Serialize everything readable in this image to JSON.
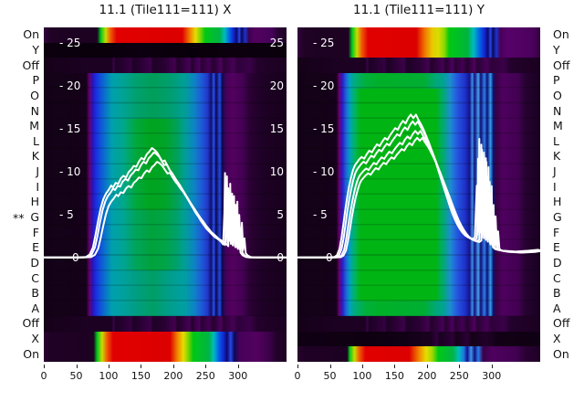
{
  "figure": {
    "background": "#ffffff",
    "curve_color": "#ffffff",
    "text_color": "#111111"
  },
  "row_labels": [
    "On",
    "Y",
    "Off",
    "P",
    "O",
    "N",
    "M",
    "L",
    "K",
    "J",
    "I",
    "H",
    "G",
    "F",
    "E",
    "D",
    "C",
    "B",
    "A",
    "Off",
    "X",
    "On"
  ],
  "star": {
    "text": "**",
    "row_index": 12
  },
  "y_ticks": [
    {
      "v": 25,
      "left": "- 25",
      "right": "25"
    },
    {
      "v": 20,
      "left": "- 20",
      "right": "20"
    },
    {
      "v": 15,
      "left": "- 15",
      "right": "15"
    },
    {
      "v": 10,
      "left": "- 10",
      "right": "10"
    },
    {
      "v": 5,
      "left": "- 5",
      "right": "5"
    },
    {
      "v": 0,
      "left": "0",
      "right": "0"
    }
  ],
  "gradients": {
    "g_rainbow_x_top": "#31033b 0%,#1f0224 3%,#1d0222 22%,#00c81e 23.5%,#c8dc00 25.5%,#f05a00 27.5%,#e10000 30%,#dc0000 57%,#f07800 60%,#e8dc00 62.5%,#7ed400 64.5%,#00c814 66.5%,#00b446 72.5%,#00bcbc 74.5%,#0064e6 76.5%,#1428d2 78%,#0a0a6e 79.5%,#2a46e6 80.5%,#0a0a5a 81.5%,#1e32c8 83%,#3c0150 84.5%,#53015f 87%,#46015a 94%,#2a0133 96.5%,#1d0124 100%",
    "g_rainbow_x_bot": "#2a022e 0%,#1e0124 3%,#1d0122 20.5%,#00c81e 22%,#c8dc00 24%,#f05a00 26%,#e10000 28.5%,#dc0000 52%,#f08200 55%,#e8dc00 57.5%,#7ed400 59.5%,#00c814 61.5%,#00b446 68%,#00bcbc 70%,#0064e6 72%,#1428d2 74%,#0a0a6e 75.5%,#2a46e6 77%,#0a0a5a 78.5%,#46015a 80.5%,#53015f 88%,#3a0148 93%,#23012b 96%,#1c0122 100%",
    "g_rainbow_y_top": "#31033b 0%,#1f0224 3%,#1d0222 21%,#00c81e 22.5%,#c8dc00 24.5%,#f05a00 26.5%,#e10000 29%,#dc0000 49%,#f07800 52.5%,#e8c800 55.5%,#d8dc00 58%,#8cd800 60.5%,#00c814 62.5%,#00b43c 70%,#00bcbc 72.5%,#0064e6 75%,#1428d2 77%,#0a0a6e 78.5%,#2a46e6 79.5%,#0a0a5a 80.5%,#1e32c8 82%,#46015a 83.5%,#58016a 86.5%,#4a015c 97%,#33013f 100%",
    "g_rainbow_y_bot": "#2a022e 0%,#1e0124 3%,#1d0122 20.5%,#00c81e 21.5%,#c8dc00 23.5%,#f05a00 25.5%,#e10000 28%,#dc0000 46%,#f08200 50%,#e8dc00 53%,#a0d800 55.5%,#00c814 58%,#00b446 64%,#00bcbc 66.5%,#1e78e0 68.5%,#12128c 70%,#3c96ec 71.5%,#12127e 73%,#2a7de8 74.5%,#3a0148 76.5%,#4e015e 80%,#420152 90%,#2a0134 94%,#1d0124 100%",
    "g_dark_row": "#0c000f 0%,#09000b 25%,#0d0011 40%,#080009 60%,#0c000e 78%,#0a000c 100%",
    "g_off_row": "#150118 0%,#1c0123 18%,#1c0123 28%,#3c014a 28.8%,#1c0123 29.6%,#330140 36%,#1c0123 37%,#3c014a 44%,#1e0126 45%,#2a0134 50%,#42014f 54%,#220129 55%,#440154 60%,#260130 61%,#4c015e 64%,#2a0134 65%,#420152 68%,#260130 70%,#4e015e 73%,#2a0134 74%,#460155 78%,#2e0139 80%,#3a0148 85%,#23012b 88%,#1a0120 100%",
    "g_dark_x_row": "#110014 0%,#0e0011 30%,#120116 45%,#19011f 55%,#330140 57.5%,#19011f 58.5%,#2c0137 64%,#170119 65.5%,#2a0134 70%,#140117 72%,#22012a 78%,#120116 82%,#100013 100%",
    "g_blob_x_outer": "#130217 0%,#150119 17.5%,#670171 18.8%,#2a12b4 20%,#1b2ee0 21.5%,#0f55d8 23.5%,#0877c8 25.5%,#009fae 28%,#00a392 33%,#00a070 38%,#009e58 45%,#009e6e 52%,#009f96 58%,#0d84c4 62%,#1e5ad8 65%,#2038c8 67.5%,#10106e 69%,#2a50f0 70%,#0a0a50 71%,#2448e8 72.5%,#0a0a50 73.5%,#46015a 75%,#53015f 78%,#430153 82%,#2a0133 85%,#1e0126 90%,#17011c 100%",
    "g_blob_x_center": "#130217 0%,#150119 17.5%,#670171 18.8%,#2a12b4 20%,#1b2ee0 21.5%,#0f55d8 23.5%,#0877c8 25.5%,#009fae 28%,#00a788 33%,#00a83c 38%,#00a41e 44%,#00a428 50%,#00a05a 55%,#009f96 58%,#0d84c4 62%,#1e5ad8 65%,#2038c8 67.5%,#10106e 69%,#2a50f0 70%,#0a0a50 71%,#2448e8 72.5%,#0a0a50 73.5%,#46015a 75%,#53015f 78%,#430153 82%,#2a0133 85%,#1e0126 90%,#17011c 100%",
    "g_blob_x_mid": "#130217 0%,#150119 17.5%,#670171 18.8%,#2a12b4 20%,#1b2ee0 21.5%,#0f55d8 23.5%,#0877c8 25.5%,#009fae 28%,#00a492 33%,#00a45a 38%,#00a23c 44%,#00a446 50%,#00a06e 55%,#009f96 58%,#0d84c4 62%,#1e5ad8 65%,#2038c8 67.5%,#10106e 69%,#2a50f0 70%,#0a0a50 71%,#2448e8 72.5%,#0a0a50 73.5%,#46015a 75%,#53015f 78%,#430153 82%,#2a0133 85%,#1e0126 90%,#17011c 100%",
    "g_blob_x_low": "#130217 0%,#150119 17.5%,#670171 18.8%,#2a12b4 20%,#1b2ee0 21.5%,#0f55d8 23.5%,#0877c8 25.5%,#009fae 28%,#00a09c 33%,#009e82 38%,#009e64 45%,#009e8c 52%,#009fa2 58%,#0d84c4 62%,#1e5ad8 65%,#2038c8 67.5%,#10106e 69%,#2a50f0 70%,#0a0a50 71%,#2448e8 72.5%,#0a0a50 73.5%,#46015a 75%,#53015f 78%,#430153 82%,#2a0133 85%,#1e0126 90%,#17011c 100%",
    "g_blob_y_center": "#130217 0%,#150119 16%,#670171 17.2%,#2a1cc8 18.5%,#1e64d8 20%,#00a0c0 21.5%,#00b464 23.5%,#00b414 26%,#00b414 57%,#00ac6e 60%,#1e8cd0 63%,#2453e0 66%,#1e32c8 69%,#14148c 71%,#3f8fe8 72%,#12127e 73%,#4aa0f0 74.5%,#0f0f73 75.5%,#2e7de8 77%,#101078 78.2%,#36a0ec 79.5%,#0e0e6e 80.7%,#3a0148 82%,#4e015e 84.5%,#420152 91%,#260230 94%,#180120 100%",
    "g_blob_y_outer": "#130217 0%,#150119 16%,#670171 17.2%,#2a1cc8 18.5%,#1e64d8 20%,#00a0c0 21.5%,#00ac7e 23.5%,#00b03c 28%,#00b028 34%,#00ae32 52%,#00a878 57%,#00a490 60%,#1e8cd0 63%,#2453e0 66%,#1e32c8 69%,#14148c 71%,#3f8fe8 72%,#12127e 73%,#4aa0f0 74.5%,#0f0f73 75.5%,#2e7de8 77%,#101078 78.2%,#36a0ec 79.5%,#0e0e6e 80.7%,#3a0148 82%,#4e015e 84.5%,#420152 91%,#260230 94%,#180120 100%"
  },
  "chart_data": [
    {
      "type": "heatmap",
      "panel": "X",
      "title": "11.1 (Tile111=111) X",
      "x_ticks": [
        0,
        50,
        100,
        150,
        200,
        250,
        300
      ],
      "x_range": [
        0,
        375
      ],
      "y_tick_values": [
        25,
        20,
        15,
        10,
        5,
        0
      ],
      "inner_right_labels": true,
      "bands": [
        {
          "rows": 1,
          "label": "On",
          "gradient": "g_rainbow_x_top"
        },
        {
          "rows": 1,
          "label": "Y",
          "gradient": "g_dark_row"
        },
        {
          "rows": 1,
          "label": "Off",
          "gradient": "g_off_row"
        },
        {
          "rows": 3,
          "label": "P-N",
          "gradient": "g_blob_x_outer"
        },
        {
          "rows": 6,
          "label": "M-H",
          "gradient": "g_blob_x_center"
        },
        {
          "rows": 4,
          "label": "G-D",
          "gradient": "g_blob_x_mid"
        },
        {
          "rows": 3,
          "label": "C-A",
          "gradient": "g_blob_x_low"
        },
        {
          "rows": 1,
          "label": "Off",
          "gradient": "g_off_row"
        },
        {
          "rows": 2,
          "label": "X+On",
          "gradient": "g_rainbow_x_bot"
        }
      ],
      "profile": [
        [
          0,
          0.05
        ],
        [
          55,
          0.05
        ],
        [
          68,
          0.1
        ],
        [
          74,
          0.4
        ],
        [
          79,
          1.2
        ],
        [
          83,
          2.6
        ],
        [
          87,
          4.2
        ],
        [
          91,
          5.6
        ],
        [
          95,
          6.6
        ],
        [
          99,
          7.2
        ],
        [
          103,
          7.6
        ],
        [
          107,
          8.1
        ],
        [
          110,
          7.9
        ],
        [
          114,
          8.4
        ],
        [
          118,
          8.3
        ],
        [
          122,
          8.9
        ],
        [
          126,
          9.2
        ],
        [
          130,
          9.0
        ],
        [
          134,
          9.6
        ],
        [
          138,
          9.9
        ],
        [
          142,
          10.3
        ],
        [
          146,
          10.2
        ],
        [
          150,
          10.8
        ],
        [
          154,
          11.2
        ],
        [
          158,
          11.0
        ],
        [
          162,
          11.6
        ],
        [
          166,
          11.9
        ],
        [
          170,
          12.3
        ],
        [
          174,
          12.1
        ],
        [
          178,
          11.8
        ],
        [
          182,
          11.3
        ],
        [
          186,
          10.8
        ],
        [
          190,
          10.9
        ],
        [
          194,
          10.3
        ],
        [
          198,
          9.8
        ],
        [
          202,
          9.4
        ],
        [
          206,
          8.9
        ],
        [
          210,
          8.5
        ],
        [
          214,
          8.0
        ],
        [
          218,
          7.5
        ],
        [
          222,
          7.0
        ],
        [
          226,
          6.5
        ],
        [
          230,
          6.0
        ],
        [
          234,
          5.5
        ],
        [
          238,
          5.0
        ],
        [
          242,
          4.6
        ],
        [
          246,
          4.1
        ],
        [
          250,
          3.7
        ],
        [
          254,
          3.3
        ],
        [
          258,
          3.0
        ],
        [
          262,
          2.7
        ],
        [
          266,
          2.4
        ],
        [
          270,
          2.2
        ],
        [
          274,
          2.0
        ],
        [
          277,
          1.8
        ],
        [
          280,
          1.5
        ],
        [
          282,
          5.0
        ],
        [
          283,
          9.5
        ],
        [
          284,
          1.8
        ],
        [
          286,
          6.5
        ],
        [
          287,
          2.0
        ],
        [
          288,
          7.8
        ],
        [
          289,
          2.2
        ],
        [
          291,
          6.8
        ],
        [
          292,
          1.6
        ],
        [
          294,
          7.2
        ],
        [
          295,
          1.4
        ],
        [
          297,
          5.5
        ],
        [
          299,
          1.2
        ],
        [
          301,
          4.5
        ],
        [
          303,
          1.0
        ],
        [
          305,
          2.5
        ],
        [
          307,
          0.6
        ],
        [
          310,
          0.3
        ],
        [
          315,
          0.1
        ],
        [
          320,
          0.05
        ],
        [
          375,
          0.05
        ]
      ],
      "trace_offsets": [
        [
          0,
          0
        ],
        [
          5,
          -0.09
        ],
        [
          -3,
          0.04
        ]
      ]
    },
    {
      "type": "heatmap",
      "panel": "Y",
      "title": "11.1 (Tile111=111) Y",
      "x_ticks": [
        0,
        50,
        100,
        150,
        200,
        250,
        300
      ],
      "x_range": [
        0,
        375
      ],
      "y_tick_values": [
        25,
        20,
        15,
        10,
        5,
        0
      ],
      "inner_right_labels": false,
      "bands": [
        {
          "rows": 2,
          "label": "On+Y",
          "gradient": "g_rainbow_y_top"
        },
        {
          "rows": 1,
          "label": "Off",
          "gradient": "g_off_row"
        },
        {
          "rows": 1,
          "label": "P",
          "gradient": "g_blob_y_outer"
        },
        {
          "rows": 14,
          "label": "O-B",
          "gradient": "g_blob_y_center"
        },
        {
          "rows": 1,
          "label": "A",
          "gradient": "g_blob_y_outer"
        },
        {
          "rows": 1,
          "label": "Off",
          "gradient": "g_off_row"
        },
        {
          "rows": 1,
          "label": "X",
          "gradient": "g_dark_x_row"
        },
        {
          "rows": 1,
          "label": "On",
          "gradient": "g_rainbow_y_bot"
        }
      ],
      "profile": [
        [
          0,
          0.05
        ],
        [
          50,
          0.05
        ],
        [
          60,
          0.1
        ],
        [
          64,
          0.3
        ],
        [
          68,
          1.0
        ],
        [
          71,
          2.2
        ],
        [
          74,
          3.8
        ],
        [
          77,
          5.4
        ],
        [
          80,
          6.8
        ],
        [
          83,
          8.0
        ],
        [
          86,
          9.0
        ],
        [
          89,
          9.8
        ],
        [
          92,
          10.3
        ],
        [
          95,
          10.6
        ],
        [
          98,
          10.9
        ],
        [
          102,
          11.2
        ],
        [
          106,
          11.0
        ],
        [
          110,
          11.5
        ],
        [
          114,
          11.9
        ],
        [
          118,
          11.7
        ],
        [
          122,
          12.2
        ],
        [
          126,
          12.6
        ],
        [
          130,
          12.4
        ],
        [
          134,
          12.9
        ],
        [
          138,
          13.3
        ],
        [
          142,
          13.1
        ],
        [
          146,
          13.6
        ],
        [
          150,
          14.0
        ],
        [
          154,
          14.4
        ],
        [
          158,
          14.2
        ],
        [
          162,
          14.8
        ],
        [
          166,
          15.2
        ],
        [
          170,
          14.9
        ],
        [
          174,
          15.5
        ],
        [
          178,
          15.9
        ],
        [
          182,
          15.5
        ],
        [
          186,
          15.9
        ],
        [
          190,
          15.3
        ],
        [
          194,
          14.8
        ],
        [
          198,
          14.2
        ],
        [
          202,
          13.5
        ],
        [
          206,
          12.8
        ],
        [
          210,
          12.0
        ],
        [
          214,
          11.2
        ],
        [
          218,
          10.3
        ],
        [
          222,
          9.4
        ],
        [
          226,
          8.5
        ],
        [
          230,
          7.6
        ],
        [
          234,
          6.7
        ],
        [
          238,
          5.8
        ],
        [
          242,
          5.0
        ],
        [
          246,
          4.3
        ],
        [
          250,
          3.7
        ],
        [
          254,
          3.2
        ],
        [
          258,
          2.8
        ],
        [
          262,
          2.5
        ],
        [
          266,
          2.3
        ],
        [
          270,
          2.2
        ],
        [
          274,
          2.1
        ],
        [
          277,
          2.3
        ],
        [
          280,
          8.0
        ],
        [
          281,
          2.6
        ],
        [
          282,
          11.0
        ],
        [
          283,
          3.0
        ],
        [
          284,
          13.2
        ],
        [
          285,
          3.4
        ],
        [
          286,
          10.5
        ],
        [
          287,
          2.8
        ],
        [
          288,
          12.0
        ],
        [
          289,
          3.2
        ],
        [
          290,
          8.5
        ],
        [
          292,
          2.4
        ],
        [
          293,
          9.5
        ],
        [
          294,
          2.0
        ],
        [
          296,
          7.0
        ],
        [
          297,
          1.8
        ],
        [
          299,
          5.5
        ],
        [
          301,
          1.5
        ],
        [
          303,
          3.5
        ],
        [
          305,
          1.2
        ],
        [
          308,
          1.0
        ],
        [
          312,
          0.9
        ],
        [
          320,
          0.8
        ],
        [
          340,
          0.7
        ],
        [
          360,
          0.8
        ],
        [
          375,
          0.9
        ]
      ],
      "trace_offsets": [
        [
          0,
          0
        ],
        [
          4,
          -0.07
        ],
        [
          -3,
          0.05
        ],
        [
          7,
          -0.12
        ]
      ]
    }
  ]
}
